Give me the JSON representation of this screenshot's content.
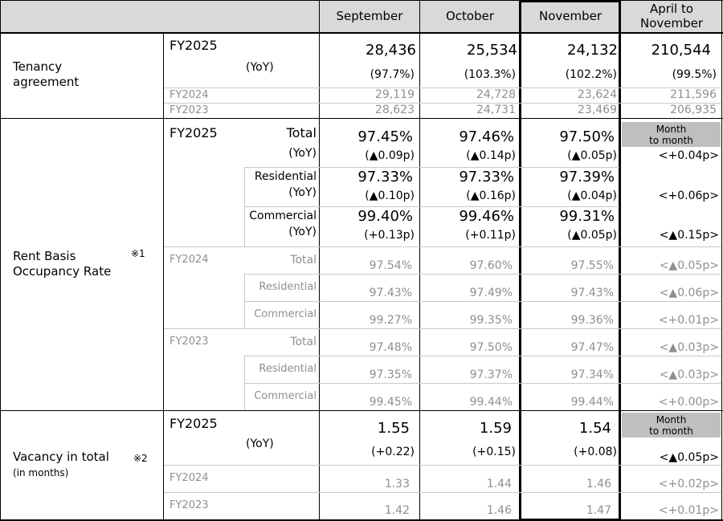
{
  "header": {
    "sep": "September",
    "oct": "October",
    "nov": "November",
    "apr_line1": "April to",
    "apr_line2": "November"
  },
  "tenancy": {
    "label_line1": "Tenancy",
    "label_line2": "agreement",
    "fy25": "FY2025",
    "yoy_label": "(YoY)",
    "sep": "28,436",
    "oct": "25,534",
    "nov": "24,132",
    "apr": "210,544",
    "sep_yoy": "(97.7%)",
    "oct_yoy": "(103.3%)",
    "nov_yoy": "(102.2%)",
    "apr_yoy": "(99.5%)",
    "fy24": "FY2024",
    "fy24_sep": "29,119",
    "fy24_oct": "24,728",
    "fy24_nov": "23,624",
    "fy24_apr": "211,596",
    "fy23": "FY2023",
    "fy23_sep": "28,623",
    "fy23_oct": "24,731",
    "fy23_nov": "23,469",
    "fy23_apr": "206,935"
  },
  "occupancy": {
    "label_line1": "Rent Basis",
    "label_line2": "Occupancy Rate",
    "note": "※1",
    "fy25": "FY2025",
    "total": "Total",
    "residential": "Residential",
    "commercial": "Commercial",
    "yoy_label": "(YoY)",
    "month_to_month_line1": "Month",
    "month_to_month_line2": "to month",
    "t_sep": "97.45%",
    "t_oct": "97.46%",
    "t_nov": "97.50%",
    "t_sep_yoy": "(▲0.09p)",
    "t_oct_yoy": "(▲0.14p)",
    "t_nov_yoy": "(▲0.05p)",
    "t_mm": "<+0.04p>",
    "r_sep": "97.33%",
    "r_oct": "97.33%",
    "r_nov": "97.39%",
    "r_sep_yoy": "(▲0.10p)",
    "r_oct_yoy": "(▲0.16p)",
    "r_nov_yoy": "(▲0.04p)",
    "r_mm": "<+0.06p>",
    "c_sep": "99.40%",
    "c_oct": "99.46%",
    "c_nov": "99.31%",
    "c_sep_yoy": "(+0.13p)",
    "c_oct_yoy": "(+0.11p)",
    "c_nov_yoy": "(▲0.05p)",
    "c_mm": "<▲0.15p>",
    "fy24": "FY2024",
    "fy24_t_sep": "97.54%",
    "fy24_t_oct": "97.60%",
    "fy24_t_nov": "97.55%",
    "fy24_t_mm": "<▲0.05p>",
    "fy24_r_sep": "97.43%",
    "fy24_r_oct": "97.49%",
    "fy24_r_nov": "97.43%",
    "fy24_r_mm": "<▲0.06p>",
    "fy24_c_sep": "99.27%",
    "fy24_c_oct": "99.35%",
    "fy24_c_nov": "99.36%",
    "fy24_c_mm": "<+0.01p>",
    "fy23": "FY2023",
    "fy23_t_sep": "97.48%",
    "fy23_t_oct": "97.50%",
    "fy23_t_nov": "97.47%",
    "fy23_t_mm": "<▲0.03p>",
    "fy23_r_sep": "97.35%",
    "fy23_r_oct": "97.37%",
    "fy23_r_nov": "97.34%",
    "fy23_r_mm": "<▲0.03p>",
    "fy23_c_sep": "99.45%",
    "fy23_c_oct": "99.44%",
    "fy23_c_nov": "99.44%",
    "fy23_c_mm": "<+0.00p>"
  },
  "vacancy": {
    "label_line1": "Vacancy in total",
    "label_line2": "(in months)",
    "note": "※2",
    "fy25": "FY2025",
    "yoy_label": "(YoY)",
    "month_to_month_line1": "Month",
    "month_to_month_line2": "to month",
    "sep": "1.55",
    "oct": "1.59",
    "nov": "1.54",
    "sep_yoy": "(+0.22)",
    "oct_yoy": "(+0.15)",
    "nov_yoy": "(+0.08)",
    "mm": "<▲0.05p>",
    "fy24": "FY2024",
    "fy24_sep": "1.33",
    "fy24_oct": "1.44",
    "fy24_nov": "1.46",
    "fy24_mm": "<+0.02p>",
    "fy23": "FY2023",
    "fy23_sep": "1.42",
    "fy23_oct": "1.46",
    "fy23_nov": "1.47",
    "fy23_mm": "<+0.01p>"
  }
}
